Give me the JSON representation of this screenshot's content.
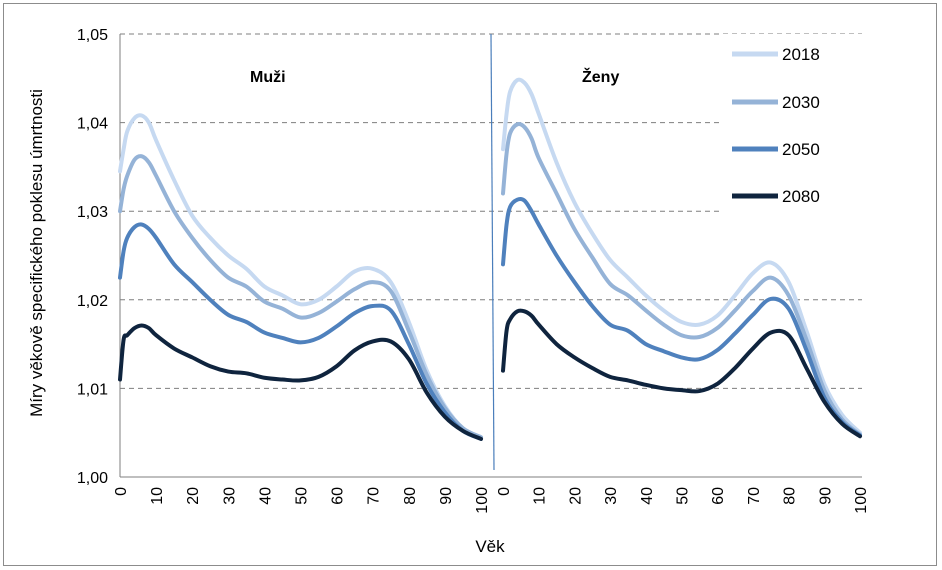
{
  "chart_data": {
    "type": "line",
    "ylabel": "Míry věkově specifického poklesu úmrtnosti",
    "xlabel": "Věk",
    "ylim": [
      1.0,
      1.05
    ],
    "yticks": [
      "1,00",
      "1,01",
      "1,02",
      "1,03",
      "1,04",
      "1,05"
    ],
    "xticks": [
      "0",
      "10",
      "20",
      "30",
      "40",
      "50",
      "60",
      "70",
      "80",
      "90",
      "100"
    ],
    "grid": "horizontal dashed",
    "legend_position": "top-right",
    "colors": {
      "2018": "#c6d9f1",
      "2030": "#95b3d7",
      "2050": "#4f81bd",
      "2080": "#0f243e"
    },
    "panels": [
      {
        "title": "Muži",
        "series": [
          {
            "name": "2018",
            "x": [
              0,
              1,
              2,
              4,
              6,
              8,
              10,
              15,
              20,
              25,
              30,
              35,
              40,
              45,
              50,
              55,
              60,
              65,
              70,
              75,
              80,
              85,
              90,
              95,
              100
            ],
            "values": [
              1.0345,
              1.037,
              1.039,
              1.0405,
              1.0408,
              1.04,
              1.038,
              1.0335,
              1.0295,
              1.027,
              1.025,
              1.0235,
              1.0215,
              1.0205,
              1.0195,
              1.02,
              1.0215,
              1.0232,
              1.0235,
              1.022,
              1.0175,
              1.012,
              1.008,
              1.0055,
              1.0045
            ]
          },
          {
            "name": "2030",
            "x": [
              0,
              1,
              2,
              4,
              6,
              8,
              10,
              15,
              20,
              25,
              30,
              35,
              40,
              45,
              50,
              55,
              60,
              65,
              70,
              75,
              80,
              85,
              90,
              95,
              100
            ],
            "values": [
              1.03,
              1.0325,
              1.034,
              1.0358,
              1.0362,
              1.0355,
              1.034,
              1.03,
              1.027,
              1.0245,
              1.0225,
              1.0215,
              1.0198,
              1.019,
              1.018,
              1.0185,
              1.0198,
              1.0212,
              1.022,
              1.021,
              1.0165,
              1.0115,
              1.0078,
              1.0055,
              1.0045
            ]
          },
          {
            "name": "2050",
            "x": [
              0,
              1,
              2,
              4,
              6,
              8,
              10,
              15,
              20,
              25,
              30,
              35,
              40,
              45,
              50,
              55,
              60,
              65,
              70,
              75,
              80,
              85,
              90,
              95,
              100
            ],
            "values": [
              1.0225,
              1.0255,
              1.027,
              1.0282,
              1.0285,
              1.028,
              1.027,
              1.024,
              1.022,
              1.02,
              1.0183,
              1.0175,
              1.0163,
              1.0157,
              1.0152,
              1.0157,
              1.017,
              1.0185,
              1.0193,
              1.0188,
              1.015,
              1.0105,
              1.0073,
              1.0052,
              1.0043
            ]
          },
          {
            "name": "2080",
            "x": [
              0,
              1,
              2,
              4,
              6,
              8,
              10,
              15,
              20,
              25,
              30,
              35,
              40,
              45,
              50,
              55,
              60,
              65,
              70,
              75,
              80,
              85,
              90,
              95,
              100
            ],
            "values": [
              1.011,
              1.0155,
              1.016,
              1.0168,
              1.0171,
              1.0168,
              1.016,
              1.0145,
              1.0135,
              1.0125,
              1.0119,
              1.0117,
              1.0112,
              1.011,
              1.0109,
              1.0113,
              1.0125,
              1.0143,
              1.0153,
              1.0153,
              1.0133,
              1.0095,
              1.0068,
              1.0052,
              1.0043
            ]
          }
        ]
      },
      {
        "title": "Ženy",
        "series": [
          {
            "name": "2018",
            "x": [
              0,
              1,
              2,
              4,
              6,
              8,
              10,
              15,
              20,
              25,
              30,
              35,
              40,
              45,
              50,
              55,
              60,
              65,
              70,
              75,
              80,
              85,
              90,
              95,
              100
            ],
            "values": [
              1.037,
              1.041,
              1.0435,
              1.0448,
              1.0445,
              1.0432,
              1.041,
              1.0355,
              1.031,
              1.0275,
              1.0245,
              1.0225,
              1.0205,
              1.0188,
              1.0175,
              1.0172,
              1.0182,
              1.0205,
              1.023,
              1.0242,
              1.022,
              1.0165,
              1.0105,
              1.007,
              1.005
            ]
          },
          {
            "name": "2030",
            "x": [
              0,
              1,
              2,
              4,
              6,
              8,
              10,
              15,
              20,
              25,
              30,
              35,
              40,
              45,
              50,
              55,
              60,
              65,
              70,
              75,
              80,
              85,
              90,
              95,
              100
            ],
            "values": [
              1.032,
              1.0365,
              1.0388,
              1.0398,
              1.0395,
              1.0382,
              1.036,
              1.032,
              1.028,
              1.0248,
              1.0218,
              1.0205,
              1.0188,
              1.0172,
              1.016,
              1.0158,
              1.0168,
              1.0188,
              1.021,
              1.0225,
              1.0205,
              1.0155,
              1.0098,
              1.0065,
              1.0048
            ]
          },
          {
            "name": "2050",
            "x": [
              0,
              1,
              2,
              4,
              6,
              8,
              10,
              15,
              20,
              25,
              30,
              35,
              40,
              45,
              50,
              55,
              60,
              65,
              70,
              75,
              80,
              85,
              90,
              95,
              100
            ],
            "values": [
              1.024,
              1.0285,
              1.0305,
              1.0313,
              1.0312,
              1.03,
              1.0285,
              1.025,
              1.022,
              1.0193,
              1.0172,
              1.0165,
              1.015,
              1.0142,
              1.0135,
              1.0133,
              1.0143,
              1.0162,
              1.0183,
              1.0201,
              1.019,
              1.0143,
              1.009,
              1.0062,
              1.0047
            ]
          },
          {
            "name": "2080",
            "x": [
              0,
              1,
              2,
              4,
              6,
              8,
              10,
              15,
              20,
              25,
              30,
              35,
              40,
              45,
              50,
              55,
              60,
              65,
              70,
              75,
              80,
              85,
              90,
              95,
              100
            ],
            "values": [
              1.012,
              1.0165,
              1.0178,
              1.0187,
              1.0187,
              1.0182,
              1.0172,
              1.015,
              1.0135,
              1.0123,
              1.0113,
              1.0109,
              1.0104,
              1.01,
              1.0098,
              1.0097,
              1.0105,
              1.0123,
              1.0145,
              1.0163,
              1.016,
              1.0123,
              1.0085,
              1.006,
              1.0046
            ]
          }
        ]
      }
    ]
  }
}
